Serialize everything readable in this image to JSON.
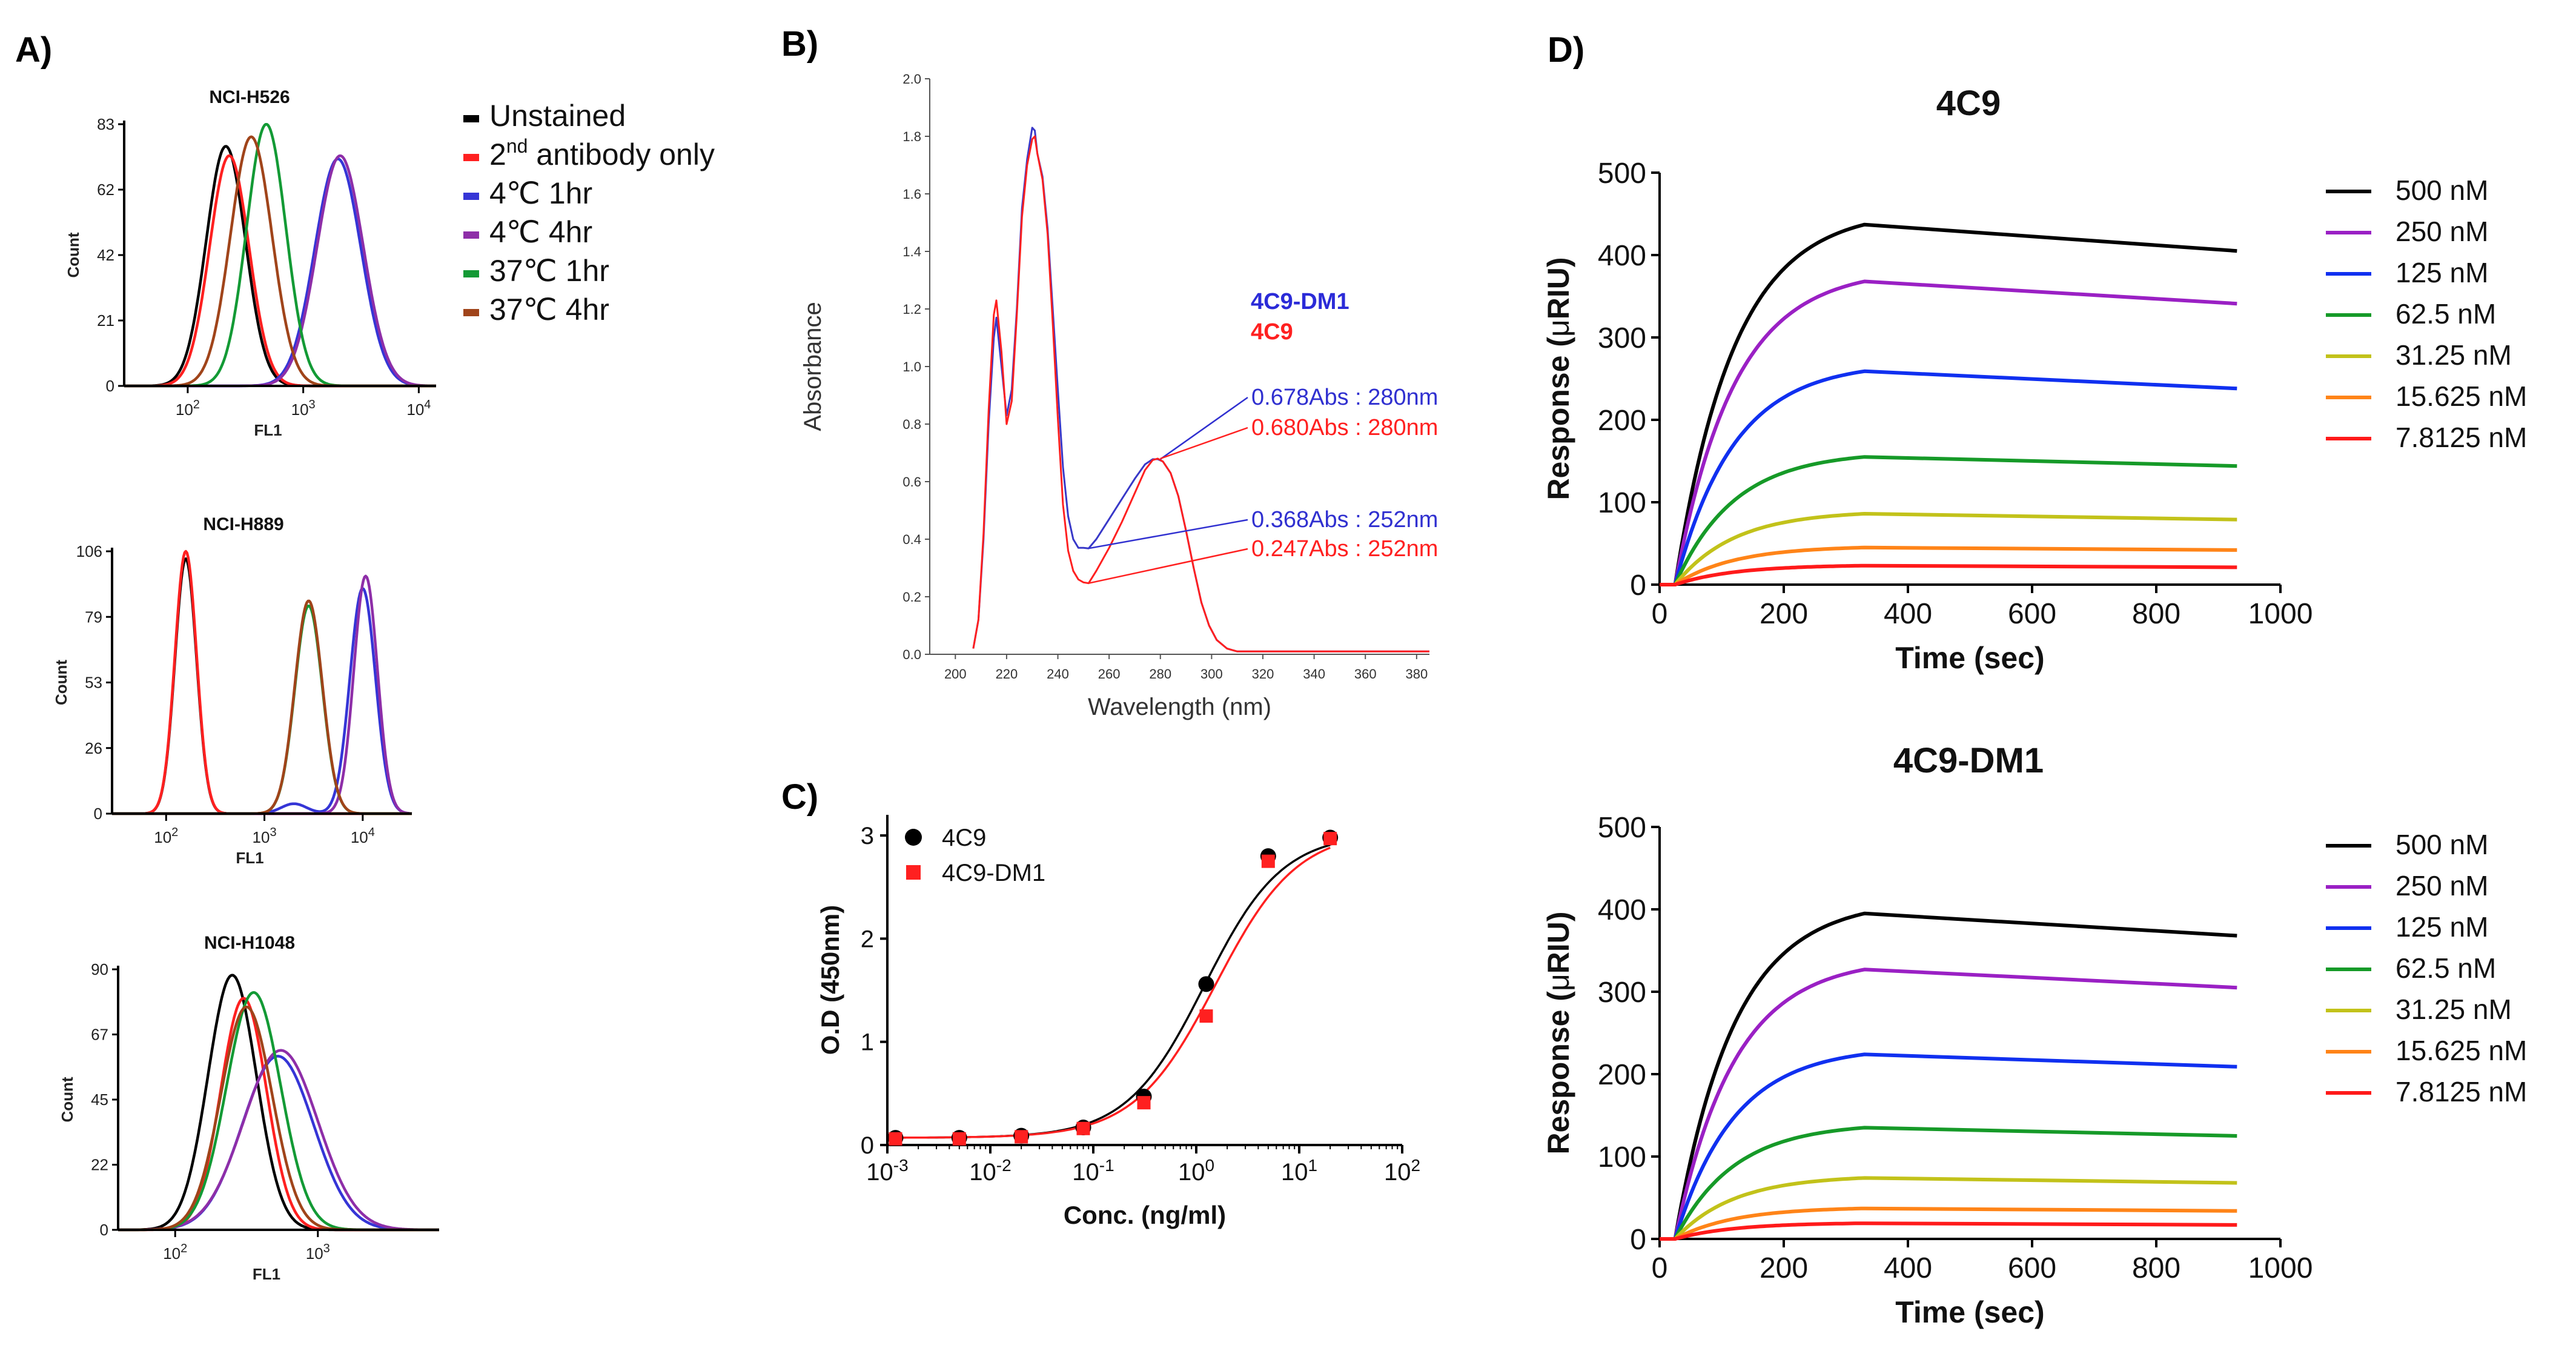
{
  "panel_labels": {
    "a": "A)",
    "b": "B)",
    "c": "C)",
    "d": "D)"
  },
  "chart_data": [
    {
      "id": "A",
      "type": "line",
      "xscale": "log",
      "xlabel": "FL1",
      "ylabel": "Count",
      "legend": [
        "Unstained",
        "2nd antibody only",
        "4℃ 1hr",
        "4℃ 4hr",
        "37℃ 1hr",
        "37℃ 4hr"
      ],
      "legend_colors": [
        "#000000",
        "#ff2020",
        "#3535d6",
        "#8e2ea8",
        "#139a35",
        "#a0441a"
      ],
      "legend_sup_text": {
        "prefix": "2",
        "sup": "nd",
        "suffix": " antibody only"
      },
      "histograms": [
        {
          "title": "NCI-H526",
          "xticks": [
            {
              "base": "10",
              "exp": "2",
              "v": 2
            },
            {
              "base": "10",
              "exp": "3",
              "v": 3
            },
            {
              "base": "10",
              "exp": "4",
              "v": 4
            }
          ],
          "xlim": [
            1.45,
            4.15
          ],
          "yticks": [
            "0",
            "21",
            "42",
            "62",
            "83"
          ],
          "ylim": [
            0,
            83
          ],
          "series": [
            {
              "name": "Unstained",
              "color": "#000000",
              "peaks": [
                {
                  "mu": 2.33,
                  "sd": 0.17,
                  "h": 76
                }
              ]
            },
            {
              "name": "2nd antibody only",
              "color": "#ff2020",
              "peaks": [
                {
                  "mu": 2.36,
                  "sd": 0.17,
                  "h": 73
                }
              ]
            },
            {
              "name": "4℃ 1hr",
              "color": "#3535d6",
              "peaks": [
                {
                  "mu": 3.3,
                  "sd": 0.2,
                  "h": 72
                }
              ]
            },
            {
              "name": "4℃ 4hr",
              "color": "#8e2ea8",
              "peaks": [
                {
                  "mu": 3.32,
                  "sd": 0.2,
                  "h": 73
                }
              ]
            },
            {
              "name": "37℃ 1hr",
              "color": "#139a35",
              "peaks": [
                {
                  "mu": 2.68,
                  "sd": 0.17,
                  "h": 83
                }
              ]
            },
            {
              "name": "37℃ 4hr",
              "color": "#a0441a",
              "peaks": [
                {
                  "mu": 2.55,
                  "sd": 0.18,
                  "h": 79
                }
              ]
            }
          ]
        },
        {
          "title": "NCI-H889",
          "xticks": [
            {
              "base": "10",
              "exp": "2",
              "v": 2
            },
            {
              "base": "10",
              "exp": "3",
              "v": 3
            },
            {
              "base": "10",
              "exp": "4",
              "v": 4
            }
          ],
          "xlim": [
            1.45,
            4.5
          ],
          "yticks": [
            "0",
            "26",
            "53",
            "79",
            "106"
          ],
          "ylim": [
            0,
            106
          ],
          "series": [
            {
              "name": "Unstained",
              "color": "#000000",
              "peaks": [
                {
                  "mu": 2.2,
                  "sd": 0.11,
                  "h": 103
                }
              ]
            },
            {
              "name": "2nd antibody only",
              "color": "#ff2020",
              "peaks": [
                {
                  "mu": 2.2,
                  "sd": 0.11,
                  "h": 106
                }
              ]
            },
            {
              "name": "4℃ 1hr",
              "color": "#3535d6",
              "peaks": [
                {
                  "mu": 4.0,
                  "sd": 0.13,
                  "h": 91
                },
                {
                  "mu": 3.3,
                  "sd": 0.13,
                  "h": 4
                }
              ]
            },
            {
              "name": "4℃ 4hr",
              "color": "#8e2ea8",
              "peaks": [
                {
                  "mu": 4.03,
                  "sd": 0.12,
                  "h": 96
                }
              ]
            },
            {
              "name": "37℃ 1hr",
              "color": "#139a35",
              "peaks": [
                {
                  "mu": 3.45,
                  "sd": 0.14,
                  "h": 84
                }
              ]
            },
            {
              "name": "37℃ 4hr",
              "color": "#a0441a",
              "peaks": [
                {
                  "mu": 3.45,
                  "sd": 0.14,
                  "h": 86
                }
              ]
            }
          ]
        },
        {
          "title": "NCI-H1048",
          "xticks": [
            {
              "base": "10",
              "exp": "2",
              "v": 2
            },
            {
              "base": "10",
              "exp": "3",
              "v": 3
            }
          ],
          "xlim": [
            1.6,
            3.85
          ],
          "yticks": [
            "0",
            "22",
            "45",
            "67",
            "90"
          ],
          "ylim": [
            0,
            90
          ],
          "series": [
            {
              "name": "Unstained",
              "color": "#000000",
              "peaks": [
                {
                  "mu": 2.4,
                  "sd": 0.17,
                  "h": 88
                }
              ]
            },
            {
              "name": "2nd antibody only",
              "color": "#ff2020",
              "peaks": [
                {
                  "mu": 2.48,
                  "sd": 0.16,
                  "h": 80
                }
              ]
            },
            {
              "name": "4℃ 1hr",
              "color": "#3535d6",
              "peaks": [
                {
                  "mu": 2.72,
                  "sd": 0.25,
                  "h": 60
                }
              ]
            },
            {
              "name": "4℃ 4hr",
              "color": "#8e2ea8",
              "peaks": [
                {
                  "mu": 2.74,
                  "sd": 0.26,
                  "h": 62
                }
              ]
            },
            {
              "name": "37℃ 1hr",
              "color": "#139a35",
              "peaks": [
                {
                  "mu": 2.55,
                  "sd": 0.19,
                  "h": 82
                }
              ]
            },
            {
              "name": "37℃ 4hr",
              "color": "#a0441a",
              "peaks": [
                {
                  "mu": 2.5,
                  "sd": 0.18,
                  "h": 77
                }
              ]
            }
          ]
        }
      ]
    },
    {
      "id": "B",
      "type": "line",
      "xlabel": "Wavelength (nm)",
      "ylabel": "Absorbance",
      "xlim": [
        190,
        385
      ],
      "ylim": [
        0,
        2.0
      ],
      "xticks": [
        "200",
        "220",
        "240",
        "260",
        "280",
        "300",
        "320",
        "340",
        "360",
        "380"
      ],
      "yticks": [
        "0.0",
        "0.2",
        "0.4",
        "0.6",
        "0.8",
        "1.0",
        "1.2",
        "1.4",
        "1.6",
        "1.8",
        "2.0"
      ],
      "legend": [
        {
          "name": "4C9-DM1",
          "color": "#2b2bd8"
        },
        {
          "name": "4C9",
          "color": "#ff2020"
        }
      ],
      "series": [
        {
          "name": "4C9-DM1",
          "color": "#3838c8",
          "x": [
            207,
            209,
            211,
            213,
            215,
            216,
            218,
            220,
            222,
            224,
            226,
            228,
            230,
            231,
            232,
            234,
            236,
            238,
            240,
            242,
            244,
            246,
            248,
            250,
            252,
            255,
            260,
            265,
            270,
            274,
            277,
            279,
            281,
            284,
            287,
            290,
            293,
            296,
            299,
            302,
            306,
            310,
            320,
            340,
            385
          ],
          "y": [
            0.02,
            0.12,
            0.4,
            0.8,
            1.1,
            1.17,
            1.0,
            0.83,
            0.92,
            1.2,
            1.55,
            1.72,
            1.83,
            1.82,
            1.74,
            1.66,
            1.48,
            1.2,
            0.92,
            0.65,
            0.48,
            0.4,
            0.37,
            0.37,
            0.368,
            0.4,
            0.47,
            0.54,
            0.61,
            0.66,
            0.678,
            0.678,
            0.67,
            0.63,
            0.55,
            0.43,
            0.3,
            0.18,
            0.1,
            0.05,
            0.02,
            0.01,
            0.01,
            0.01,
            0.01
          ]
        },
        {
          "name": "4C9",
          "color": "#ff2020",
          "x": [
            207,
            209,
            211,
            213,
            215,
            216,
            218,
            220,
            222,
            224,
            226,
            228,
            230,
            231,
            232,
            234,
            236,
            238,
            240,
            242,
            244,
            246,
            248,
            250,
            252,
            255,
            260,
            265,
            270,
            274,
            277,
            279,
            281,
            284,
            287,
            290,
            293,
            296,
            299,
            302,
            306,
            310,
            320,
            340,
            385
          ],
          "y": [
            0.02,
            0.12,
            0.42,
            0.85,
            1.18,
            1.23,
            1.05,
            0.8,
            0.88,
            1.18,
            1.52,
            1.7,
            1.79,
            1.8,
            1.74,
            1.65,
            1.46,
            1.15,
            0.82,
            0.52,
            0.36,
            0.29,
            0.26,
            0.25,
            0.247,
            0.29,
            0.37,
            0.46,
            0.56,
            0.64,
            0.675,
            0.68,
            0.67,
            0.63,
            0.55,
            0.43,
            0.3,
            0.18,
            0.1,
            0.05,
            0.02,
            0.01,
            0.01,
            0.01,
            0.01
          ]
        }
      ],
      "annotations": [
        {
          "text": "0.678Abs : 280nm",
          "color": "#3030d0",
          "x": 280,
          "y": 0.678
        },
        {
          "text": "0.680Abs : 280nm",
          "color": "#ff2020",
          "x": 280,
          "y": 0.68
        },
        {
          "text": "0.368Abs : 252nm",
          "color": "#3030d0",
          "x": 252,
          "y": 0.368
        },
        {
          "text": "0.247Abs : 252nm",
          "color": "#ff2020",
          "x": 252,
          "y": 0.247
        }
      ]
    },
    {
      "id": "C",
      "type": "scatter",
      "xscale": "log",
      "xlabel": "Conc. (ng/ml)",
      "ylabel": "O.D (450nm)",
      "xlim": [
        -3,
        2
      ],
      "ylim": [
        0,
        3.2
      ],
      "xticks": [
        {
          "base": "10",
          "exp": "-3",
          "v": -3
        },
        {
          "base": "10",
          "exp": "-2",
          "v": -2
        },
        {
          "base": "10",
          "exp": "-1",
          "v": -1
        },
        {
          "base": "10",
          "exp": "0",
          "v": 0
        },
        {
          "base": "10",
          "exp": "1",
          "v": 1
        },
        {
          "base": "10",
          "exp": "2",
          "v": 2
        }
      ],
      "yticks": [
        "0",
        "1",
        "2",
        "3"
      ],
      "series": [
        {
          "name": "4C9",
          "color": "#000000",
          "marker": "circle",
          "x": [
            0.0012,
            0.005,
            0.02,
            0.08,
            0.31,
            1.25,
            5,
            20
          ],
          "y": [
            0.07,
            0.07,
            0.09,
            0.17,
            0.47,
            1.56,
            2.8,
            2.98
          ],
          "fit": {
            "bottom": 0.07,
            "top": 3.02,
            "ec50": 1.2,
            "hill": 1.15
          }
        },
        {
          "name": "4C9-DM1",
          "color": "#ff2020",
          "marker": "square",
          "x": [
            0.0012,
            0.005,
            0.02,
            0.08,
            0.31,
            1.25,
            5,
            20
          ],
          "y": [
            0.06,
            0.06,
            0.08,
            0.16,
            0.41,
            1.25,
            2.75,
            2.97
          ],
          "fit": {
            "bottom": 0.07,
            "top": 3.05,
            "ec50": 1.55,
            "hill": 1.1
          }
        }
      ]
    },
    {
      "id": "D",
      "type": "line",
      "xlabel": "Time (sec)",
      "ylabel_prefix": "Response (",
      "ylabel_mu": "μ",
      "ylabel_suffix": "RIU)",
      "xlim": [
        0,
        1000
      ],
      "ylim": [
        0,
        500
      ],
      "xticks": [
        "0",
        "200",
        "400",
        "600",
        "800",
        "1000"
      ],
      "yticks": [
        "0",
        "100",
        "200",
        "300",
        "400",
        "500"
      ],
      "legend": [
        {
          "name": "500 nM",
          "color": "#000000"
        },
        {
          "name": "250 nM",
          "color": "#9a20c4"
        },
        {
          "name": "125 nM",
          "color": "#1030f0"
        },
        {
          "name": "62.5 nM",
          "color": "#169a28"
        },
        {
          "name": "31.25 nM",
          "color": "#c2c21a"
        },
        {
          "name": "15.625 nM",
          "color": "#ff8418"
        },
        {
          "name": "7.8125 nM",
          "color": "#ff1a1a"
        }
      ],
      "subplots": [
        {
          "title": "4C9",
          "series": [
            {
              "name": "500 nM",
              "inj_start": 25,
              "inj_end": 330,
              "end_time": 930,
              "plateau": 437,
              "end_value": 405
            },
            {
              "name": "250 nM",
              "inj_start": 25,
              "inj_end": 330,
              "end_time": 930,
              "plateau": 368,
              "end_value": 341
            },
            {
              "name": "125 nM",
              "inj_start": 25,
              "inj_end": 330,
              "end_time": 930,
              "plateau": 259,
              "end_value": 238
            },
            {
              "name": "62.5 nM",
              "inj_start": 25,
              "inj_end": 330,
              "end_time": 930,
              "plateau": 155,
              "end_value": 144
            },
            {
              "name": "31.25 nM",
              "inj_start": 25,
              "inj_end": 330,
              "end_time": 930,
              "plateau": 86,
              "end_value": 79
            },
            {
              "name": "15.625 nM",
              "inj_start": 25,
              "inj_end": 330,
              "end_time": 930,
              "plateau": 45,
              "end_value": 42
            },
            {
              "name": "7.8125 nM",
              "inj_start": 25,
              "inj_end": 330,
              "end_time": 930,
              "plateau": 23,
              "end_value": 21
            }
          ]
        },
        {
          "title": "4C9-DM1",
          "series": [
            {
              "name": "500 nM",
              "inj_start": 25,
              "inj_end": 330,
              "end_time": 930,
              "plateau": 395,
              "end_value": 368
            },
            {
              "name": "250 nM",
              "inj_start": 25,
              "inj_end": 330,
              "end_time": 930,
              "plateau": 327,
              "end_value": 305
            },
            {
              "name": "125 nM",
              "inj_start": 25,
              "inj_end": 330,
              "end_time": 930,
              "plateau": 224,
              "end_value": 209
            },
            {
              "name": "62.5 nM",
              "inj_start": 25,
              "inj_end": 330,
              "end_time": 930,
              "plateau": 135,
              "end_value": 125
            },
            {
              "name": "31.25 nM",
              "inj_start": 25,
              "inj_end": 330,
              "end_time": 930,
              "plateau": 74,
              "end_value": 68
            },
            {
              "name": "15.625 nM",
              "inj_start": 25,
              "inj_end": 330,
              "end_time": 930,
              "plateau": 37,
              "end_value": 34
            },
            {
              "name": "7.8125 nM",
              "inj_start": 25,
              "inj_end": 330,
              "end_time": 930,
              "plateau": 19,
              "end_value": 17
            }
          ]
        }
      ]
    }
  ]
}
